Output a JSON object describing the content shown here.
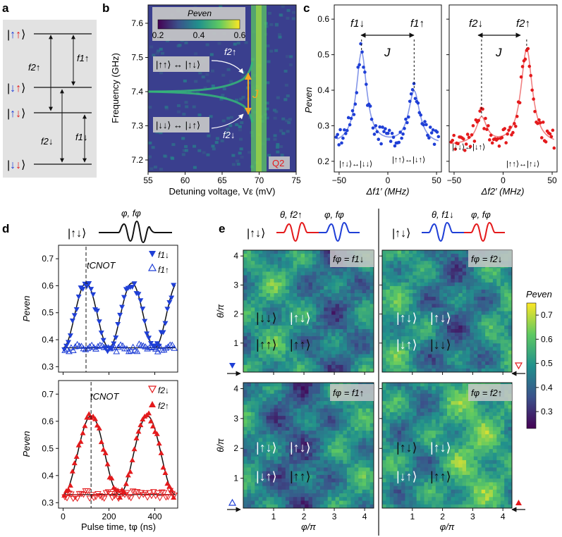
{
  "panel_letters": {
    "a": "a",
    "b": "b",
    "c": "c",
    "d": "d",
    "e": "e"
  },
  "colors": {
    "up": "#e41a1c",
    "down": "#1f3fd6",
    "black": "#111111",
    "panel_bg": "#e2e2e2"
  },
  "panel_a": {
    "levels": [
      "|↑↑⟩",
      "|↓↑⟩",
      "|↑↓⟩",
      "|↓↓⟩"
    ],
    "transitions": [
      "f2↑",
      "f1↑",
      "f2↓",
      "f1↓"
    ]
  },
  "panel_b": {
    "colorbar_title": "Peven",
    "colorbar_ticks": [
      "0.2",
      "0.4",
      "0.6"
    ],
    "xlabel": "Detuning voltage, Vε (mV)",
    "ylabel": "Frequency (GHz)",
    "xticks": [
      "55",
      "60",
      "65",
      "70",
      "75"
    ],
    "yticks": [
      "7.6",
      "7.5",
      "7.4",
      "7.3",
      "7.2"
    ],
    "label_upper": "|↑↑⟩ ↔ |↑↓⟩",
    "label_lower": "|↓↓⟩ ↔ |↓↑⟩",
    "f_upper": "f2↑",
    "f_lower": "f2↓",
    "J": "J",
    "tag": "Q2"
  },
  "panel_c": {
    "left": {
      "ylabel": "Peven",
      "xlabel": "Δf1′ (MHz)",
      "xticks": [
        "−50",
        "0",
        "50"
      ],
      "yticks": [
        "0.6",
        "0.5",
        "0.4",
        "0.3",
        "0.2"
      ],
      "peak_left": "f1↓",
      "peak_right": "f1↑",
      "J": "J",
      "note_left": "|↑↓⟩↔|↓↓⟩",
      "note_right": "|↑↑⟩↔|↓↑⟩"
    },
    "right": {
      "xlabel": "Δf2′ (MHz)",
      "xticks": [
        "−50",
        "0",
        "50"
      ],
      "peak_left": "f2↓",
      "peak_right": "f2↑",
      "J": "J",
      "note_left": "|↓↓⟩↔|↓↑⟩",
      "note_right": "|↑↑⟩↔|↑↓⟩"
    }
  },
  "panel_d": {
    "pulse_ket": "|↑↓⟩",
    "pulse_label": "φ, fφ",
    "ylabel": "Peven",
    "xlabel": "Pulse time, tφ (ns)",
    "xticks": [
      "0",
      "200",
      "400"
    ],
    "yticks": [
      "0.7",
      "0.6",
      "0.5",
      "0.4",
      "0.3"
    ],
    "top": {
      "tcnot": "tCNOT",
      "legend": [
        "f1↓",
        "f1↑"
      ]
    },
    "bottom": {
      "tcnot": "tCNOT",
      "legend": [
        "f2↓",
        "f2↑"
      ]
    }
  },
  "panel_e": {
    "seq_left": {
      "ket": "|↑↓⟩",
      "p1": "θ, f2↑",
      "p2": "φ, fφ"
    },
    "seq_right": {
      "ket": "|↑↓⟩",
      "p1": "θ, f1↓",
      "p2": "φ, fφ"
    },
    "ylabel": "θ/π",
    "xlabel": "φ/π",
    "ticks": [
      "1",
      "2",
      "3",
      "4"
    ],
    "maps": [
      {
        "cond": "fφ = f1↓",
        "grid": [
          [
            "|↓↓⟩",
            "|↑↓⟩"
          ],
          [
            "|↑↑⟩",
            "|↑↑⟩"
          ]
        ]
      },
      {
        "cond": "fφ = f2↓",
        "grid": [
          [
            "|↑↓⟩",
            "|↑↓⟩"
          ],
          [
            "|↓↑⟩",
            "|↓↓⟩"
          ]
        ]
      },
      {
        "cond": "fφ = f1↑",
        "grid": [
          [
            "|↑↓⟩",
            "|↑↓⟩"
          ],
          [
            "|↓↑⟩",
            "|↑↑⟩"
          ]
        ]
      },
      {
        "cond": "fφ = f2↑",
        "grid": [
          [
            "|↑↓⟩",
            "|↑↓⟩"
          ],
          [
            "|↓↑⟩",
            "|↑↑⟩"
          ]
        ]
      }
    ],
    "colorbar_title": "Peven",
    "colorbar_ticks": [
      "0.7",
      "0.6",
      "0.5",
      "0.4",
      "0.3"
    ]
  }
}
